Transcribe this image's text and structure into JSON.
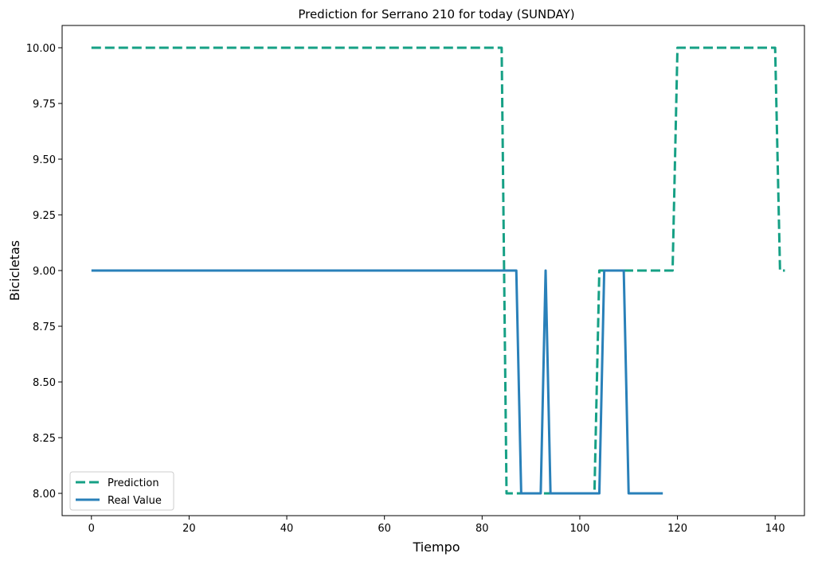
{
  "chart_data": {
    "type": "line",
    "title": "Prediction for Serrano 210 for today (SUNDAY)",
    "xlabel": "Tiempo",
    "ylabel": "Bicicletas",
    "xlim": [
      -6,
      146
    ],
    "ylim": [
      7.9,
      10.1
    ],
    "xticks": [
      0,
      20,
      40,
      60,
      80,
      100,
      120,
      140
    ],
    "xtick_labels": [
      "0",
      "20",
      "40",
      "60",
      "80",
      "100",
      "120",
      "140"
    ],
    "yticks": [
      8.0,
      8.25,
      8.5,
      8.75,
      9.0,
      9.25,
      9.5,
      9.75,
      10.0
    ],
    "ytick_labels": [
      "8.00",
      "8.25",
      "8.50",
      "8.75",
      "9.00",
      "9.25",
      "9.50",
      "9.75",
      "10.00"
    ],
    "grid": false,
    "legend_position": "lower-left",
    "series": [
      {
        "name": "Prediction",
        "color": "#16a085",
        "style": "dashed",
        "x": [
          0,
          84,
          85,
          103,
          104,
          119,
          120,
          140,
          141,
          142
        ],
        "y": [
          10,
          10,
          8,
          8,
          9,
          9,
          10,
          10,
          9,
          9
        ]
      },
      {
        "name": "Real Value",
        "color": "#2980b9",
        "style": "solid",
        "x": [
          0,
          87,
          88,
          92,
          93,
          94,
          104,
          105,
          109,
          110,
          117
        ],
        "y": [
          9,
          9,
          8,
          8,
          9,
          8,
          8,
          9,
          9,
          8,
          8
        ]
      }
    ]
  }
}
